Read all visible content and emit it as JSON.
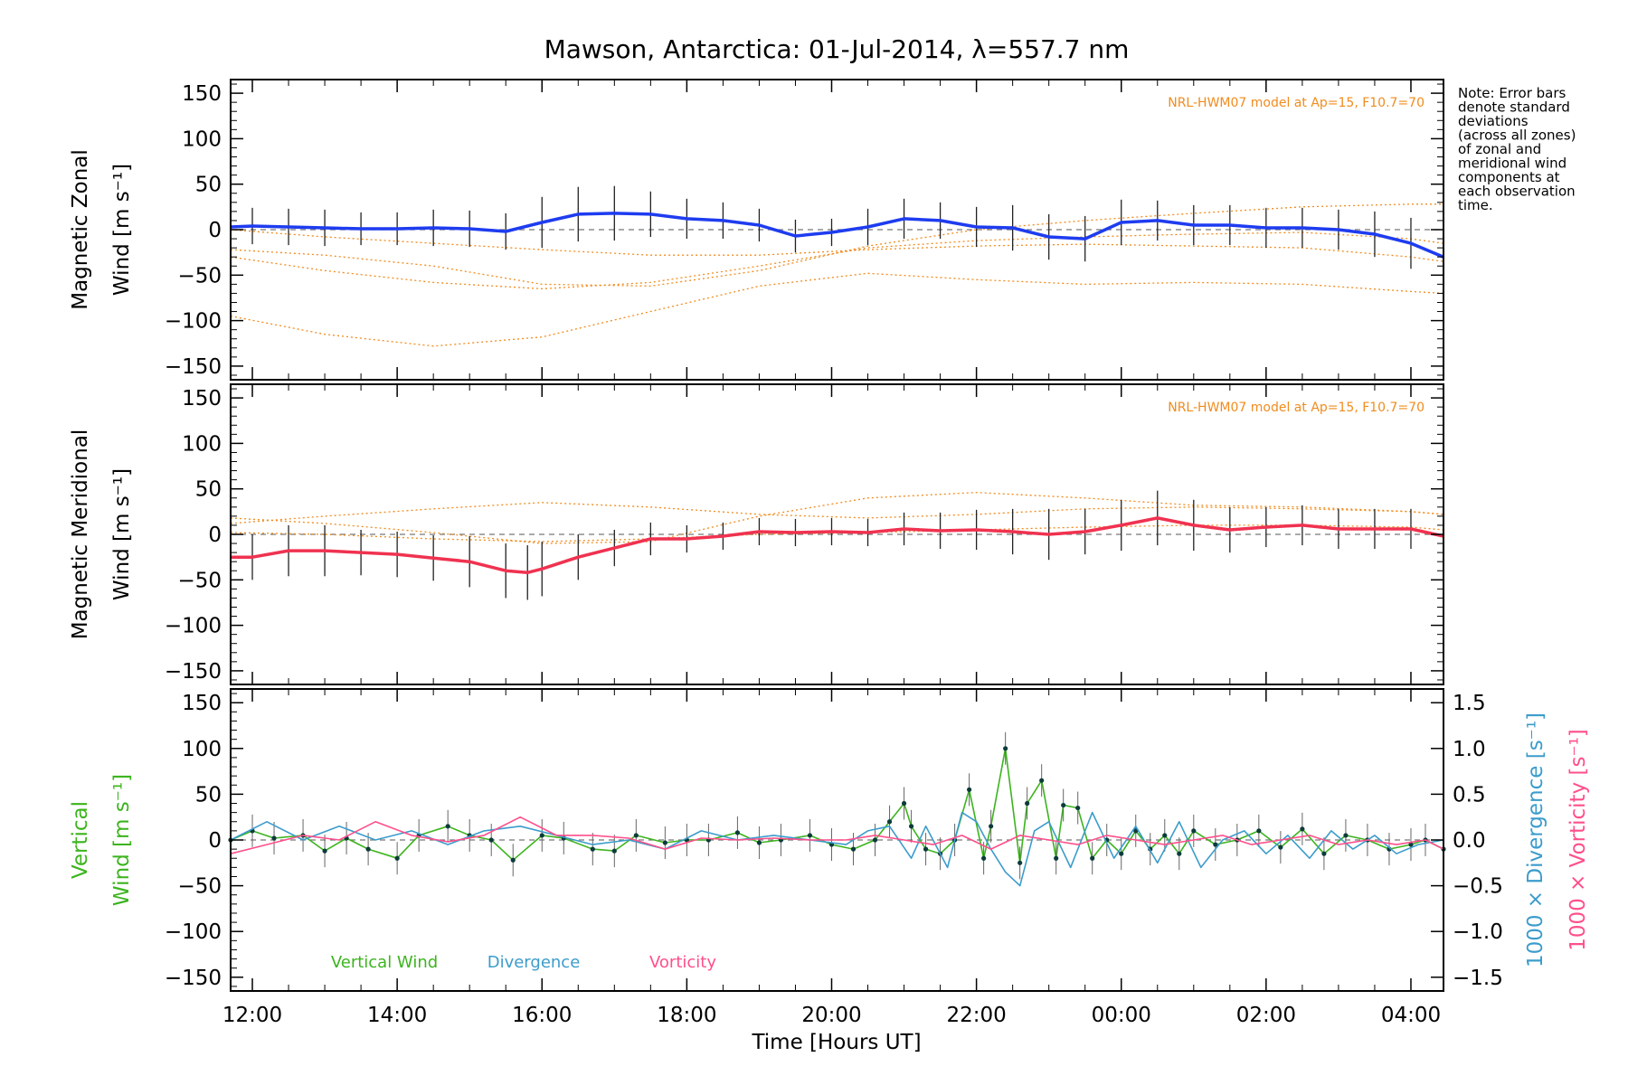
{
  "chart_data": [
    {
      "type": "line",
      "title": "Mawson, Antarctica: 01-Jul-2014, λ=557.7 nm",
      "xlabel": "",
      "ylabel_lines": [
        "Magnetic Zonal",
        "Wind [m s⁻¹]"
      ],
      "ylim": [
        -165,
        165
      ],
      "yticks": [
        "150",
        "100",
        "50",
        "0",
        "−50",
        "−100",
        "−150"
      ],
      "xlim_hours_ut": [
        11.7,
        28.45
      ],
      "model_label": "NRL-HWM07 model at Ap=15, F10.7=70",
      "note_lines": [
        "Note: Error bars",
        "denote standard",
        "deviations",
        "(across all zones)",
        "of zonal and",
        "meridional wind",
        "components at",
        "each observation",
        "time."
      ],
      "series": [
        {
          "name": "",
          "color": "#1e3cf0",
          "x": [
            11.7,
            12.0,
            12.5,
            13.0,
            13.5,
            14.0,
            14.5,
            15.0,
            15.5,
            16.0,
            16.5,
            17.0,
            17.5,
            18.0,
            18.5,
            19.0,
            19.5,
            20.0,
            20.5,
            21.0,
            21.5,
            22.0,
            22.5,
            23.0,
            23.5,
            24.0,
            24.5,
            25.0,
            25.5,
            26.0,
            26.5,
            27.0,
            27.5,
            28.0,
            28.45
          ],
          "y": [
            3,
            4,
            3,
            2,
            1,
            1,
            2,
            1,
            -2,
            8,
            17,
            18,
            17,
            12,
            10,
            5,
            -7,
            -3,
            3,
            12,
            10,
            3,
            2,
            -8,
            -10,
            8,
            10,
            5,
            5,
            2,
            2,
            0,
            -5,
            -15,
            -30
          ]
        }
      ],
      "std_dev": [
        20,
        20,
        20,
        20,
        18,
        18,
        20,
        20,
        20,
        28,
        30,
        30,
        25,
        22,
        20,
        18,
        18,
        15,
        20,
        22,
        20,
        22,
        25,
        25,
        25,
        25,
        22,
        22,
        22,
        22,
        22,
        22,
        25,
        28,
        30
      ],
      "model_curves": [
        {
          "x": [
            11.7,
            13.0,
            14.5,
            16.0,
            17.5,
            19.0,
            20.5,
            22.0,
            23.5,
            25.0,
            26.5,
            28.0,
            28.45
          ],
          "y": [
            -95,
            -115,
            -128,
            -118,
            -90,
            -62,
            -48,
            -55,
            -60,
            -58,
            -60,
            -68,
            -70
          ]
        },
        {
          "x": [
            11.7,
            13.0,
            14.5,
            16.0,
            17.5,
            19.0,
            20.5,
            22.0,
            23.5,
            25.0,
            26.5,
            28.0,
            28.45
          ],
          "y": [
            -30,
            -45,
            -58,
            -65,
            -58,
            -40,
            -20,
            -12,
            -8,
            -5,
            -3,
            -10,
            -15
          ]
        },
        {
          "x": [
            11.7,
            13.0,
            14.5,
            16.0,
            17.5,
            19.0,
            20.5,
            22.0,
            23.5,
            25.0,
            26.5,
            28.0,
            28.45
          ],
          "y": [
            -22,
            -28,
            -40,
            -60,
            -62,
            -45,
            -18,
            0,
            10,
            18,
            25,
            28,
            28
          ]
        },
        {
          "x": [
            11.7,
            13.0,
            14.5,
            16.0,
            17.5,
            19.0,
            20.5,
            22.0,
            23.5,
            25.0,
            26.5,
            28.0,
            28.45
          ],
          "y": [
            0,
            -8,
            -15,
            -22,
            -28,
            -28,
            -22,
            -18,
            -16,
            -18,
            -20,
            -30,
            -35
          ]
        }
      ]
    },
    {
      "type": "line",
      "xlabel": "",
      "ylabel_lines": [
        "Magnetic Meridional",
        "Wind [m s⁻¹]"
      ],
      "ylim": [
        -165,
        165
      ],
      "yticks": [
        "150",
        "100",
        "50",
        "0",
        "−50",
        "−100",
        "−150"
      ],
      "xlim_hours_ut": [
        11.7,
        28.45
      ],
      "model_label": "NRL-HWM07 model at Ap=15, F10.7=70",
      "series": [
        {
          "name": "",
          "color": "#f03250",
          "x": [
            11.7,
            12.0,
            12.5,
            13.0,
            13.5,
            14.0,
            14.5,
            15.0,
            15.5,
            15.8,
            16.0,
            16.5,
            17.0,
            17.5,
            18.0,
            18.5,
            19.0,
            19.5,
            20.0,
            20.5,
            21.0,
            21.5,
            22.0,
            22.5,
            23.0,
            23.5,
            24.0,
            24.5,
            25.0,
            25.5,
            26.0,
            26.5,
            27.0,
            27.5,
            28.0,
            28.45
          ],
          "y": [
            -25,
            -25,
            -18,
            -18,
            -20,
            -22,
            -26,
            -30,
            -40,
            -42,
            -38,
            -25,
            -15,
            -5,
            -5,
            -2,
            3,
            2,
            3,
            2,
            6,
            4,
            5,
            3,
            0,
            3,
            10,
            18,
            10,
            5,
            8,
            10,
            6,
            6,
            6,
            -2
          ]
        }
      ],
      "std_dev": [
        25,
        25,
        28,
        28,
        25,
        25,
        25,
        28,
        30,
        30,
        30,
        25,
        20,
        18,
        15,
        15,
        15,
        15,
        15,
        15,
        18,
        20,
        22,
        25,
        28,
        25,
        28,
        30,
        28,
        25,
        22,
        22,
        22,
        22,
        22,
        20
      ],
      "model_curves": [
        {
          "x": [
            11.7,
            13.0,
            14.5,
            16.0,
            17.5,
            19.0,
            20.5,
            22.0,
            23.5,
            25.0,
            26.5,
            28.0,
            28.45
          ],
          "y": [
            18,
            12,
            2,
            -10,
            -8,
            20,
            40,
            46,
            40,
            32,
            30,
            25,
            22
          ]
        },
        {
          "x": [
            11.7,
            13.0,
            14.5,
            16.0,
            17.5,
            19.0,
            20.5,
            22.0,
            23.5,
            25.0,
            26.5,
            28.0,
            28.45
          ],
          "y": [
            12,
            20,
            28,
            35,
            30,
            22,
            18,
            22,
            28,
            30,
            28,
            25,
            22
          ]
        },
        {
          "x": [
            11.7,
            13.0,
            14.5,
            16.0,
            17.5,
            19.0,
            20.5,
            22.0,
            23.5,
            25.0,
            26.5,
            28.0,
            28.45
          ],
          "y": [
            2,
            0,
            -5,
            -8,
            -5,
            0,
            2,
            5,
            8,
            10,
            10,
            8,
            5
          ]
        }
      ]
    },
    {
      "type": "line",
      "xlabel": "Time [Hours UT]",
      "ylabel_lines": [
        "Vertical",
        "Wind [m s⁻¹]"
      ],
      "ylabel_right_1": "1000 × Divergence [s⁻¹]",
      "ylabel_right_2": "1000 × Vorticity [s⁻¹]",
      "ylim": [
        -165,
        165
      ],
      "ylim_right": [
        -1.65,
        1.65
      ],
      "yticks": [
        "150",
        "100",
        "50",
        "0",
        "−50",
        "−100",
        "−150"
      ],
      "yticks_right": [
        "1.5",
        "1.0",
        "0.5",
        "0.0",
        "−0.5",
        "−1.0",
        "−1.5"
      ],
      "xlim_hours_ut": [
        11.7,
        28.45
      ],
      "xticks": [
        "12:00",
        "14:00",
        "16:00",
        "18:00",
        "20:00",
        "22:00",
        "00:00",
        "02:00",
        "04:00"
      ],
      "xtick_hours": [
        12,
        14,
        16,
        18,
        20,
        22,
        24,
        26,
        28
      ],
      "legend": [
        "Vertical Wind",
        "Divergence",
        "Vorticity"
      ],
      "legend_colors": [
        "#3cb41e",
        "#3c9ccc",
        "#ff4f8b"
      ],
      "series": [
        {
          "name": "Vertical Wind",
          "color": "#3cb41e",
          "x": [
            11.7,
            12.0,
            12.3,
            12.7,
            13.0,
            13.3,
            13.6,
            14.0,
            14.3,
            14.7,
            15.0,
            15.3,
            15.6,
            16.0,
            16.3,
            16.7,
            17.0,
            17.3,
            17.7,
            18.0,
            18.3,
            18.7,
            19.0,
            19.3,
            19.7,
            20.0,
            20.3,
            20.6,
            20.8,
            21.0,
            21.1,
            21.3,
            21.5,
            21.7,
            21.9,
            22.1,
            22.2,
            22.4,
            22.6,
            22.7,
            22.9,
            23.1,
            23.2,
            23.4,
            23.6,
            23.8,
            24.0,
            24.2,
            24.4,
            24.6,
            24.8,
            25.0,
            25.3,
            25.6,
            25.9,
            26.2,
            26.5,
            26.8,
            27.1,
            27.4,
            27.7,
            28.0,
            28.2,
            28.45
          ],
          "y": [
            0,
            10,
            2,
            5,
            -12,
            2,
            -10,
            -20,
            5,
            15,
            5,
            0,
            -22,
            5,
            2,
            -10,
            -12,
            5,
            -3,
            0,
            0,
            8,
            -3,
            0,
            5,
            -5,
            -10,
            0,
            20,
            40,
            15,
            -10,
            -15,
            0,
            55,
            -20,
            15,
            100,
            -25,
            40,
            65,
            -20,
            38,
            35,
            -20,
            0,
            -15,
            10,
            -10,
            5,
            -15,
            10,
            -5,
            0,
            10,
            -8,
            12,
            -15,
            5,
            0,
            -10,
            -5,
            0,
            -10
          ]
        },
        {
          "name": "Divergence",
          "color": "#3c9ccc",
          "x": [
            11.7,
            12.2,
            12.7,
            13.2,
            13.7,
            14.2,
            14.7,
            15.2,
            15.7,
            16.2,
            16.7,
            17.2,
            17.7,
            18.2,
            18.7,
            19.2,
            19.7,
            20.2,
            20.5,
            20.8,
            21.1,
            21.3,
            21.6,
            21.8,
            22.0,
            22.2,
            22.4,
            22.6,
            22.8,
            23.0,
            23.3,
            23.6,
            23.9,
            24.2,
            24.5,
            24.8,
            25.1,
            25.4,
            25.7,
            26.0,
            26.3,
            26.6,
            26.9,
            27.2,
            27.5,
            27.8,
            28.1,
            28.45
          ],
          "y": [
            0.0,
            0.2,
            0.0,
            0.15,
            0.0,
            0.1,
            -0.05,
            0.1,
            0.15,
            0.05,
            -0.05,
            0.0,
            -0.1,
            0.1,
            0.0,
            0.05,
            0.0,
            -0.05,
            0.1,
            0.15,
            -0.2,
            0.15,
            -0.3,
            0.3,
            0.2,
            -0.1,
            -0.35,
            -0.5,
            0.1,
            0.2,
            -0.3,
            0.3,
            -0.2,
            0.15,
            -0.25,
            0.2,
            -0.3,
            0.0,
            0.1,
            -0.15,
            0.05,
            -0.2,
            0.1,
            -0.1,
            0.05,
            -0.15,
            -0.05,
            0.0
          ]
        },
        {
          "name": "Vorticity",
          "color": "#ff4f8b",
          "x": [
            11.7,
            12.2,
            12.7,
            13.2,
            13.7,
            14.2,
            14.7,
            15.2,
            15.7,
            16.2,
            16.7,
            17.2,
            17.7,
            18.2,
            18.7,
            19.2,
            19.7,
            20.2,
            20.6,
            21.0,
            21.4,
            21.8,
            22.2,
            22.6,
            23.0,
            23.4,
            23.8,
            24.2,
            24.6,
            25.0,
            25.4,
            25.8,
            26.2,
            26.6,
            27.0,
            27.4,
            27.8,
            28.2,
            28.45
          ],
          "y": [
            -0.15,
            -0.05,
            0.05,
            0.0,
            0.2,
            0.05,
            -0.02,
            0.05,
            0.25,
            0.05,
            0.05,
            0.02,
            -0.1,
            0.02,
            0.0,
            0.02,
            0.0,
            0.0,
            0.05,
            0.0,
            -0.05,
            0.05,
            -0.1,
            0.05,
            0.0,
            -0.05,
            0.05,
            0.0,
            -0.05,
            0.0,
            0.05,
            -0.05,
            0.0,
            0.05,
            -0.05,
            0.0,
            -0.05,
            0.0,
            -0.1
          ]
        }
      ]
    }
  ]
}
